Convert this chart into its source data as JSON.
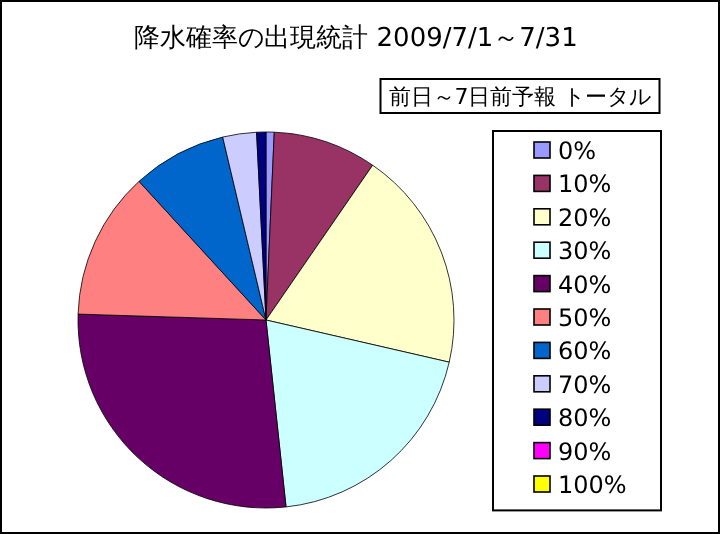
{
  "chart_data": {
    "type": "pie",
    "title": "降水確率の出現統計  2009/7/1～7/31",
    "subtitle": "前日～7日前予報 トータル",
    "categories": [
      "0%",
      "10%",
      "20%",
      "30%",
      "40%",
      "50%",
      "60%",
      "70%",
      "80%",
      "90%",
      "100%"
    ],
    "values": [
      0.7,
      8.9,
      19.0,
      19.7,
      27.2,
      12.7,
      8.1,
      2.9,
      0.8,
      0,
      0
    ],
    "colors": [
      "#9999ff",
      "#993366",
      "#ffffcc",
      "#ccffff",
      "#660066",
      "#ff8080",
      "#0066cc",
      "#ccccff",
      "#000080",
      "#ff00ff",
      "#ffff00"
    ],
    "legend": "right"
  }
}
